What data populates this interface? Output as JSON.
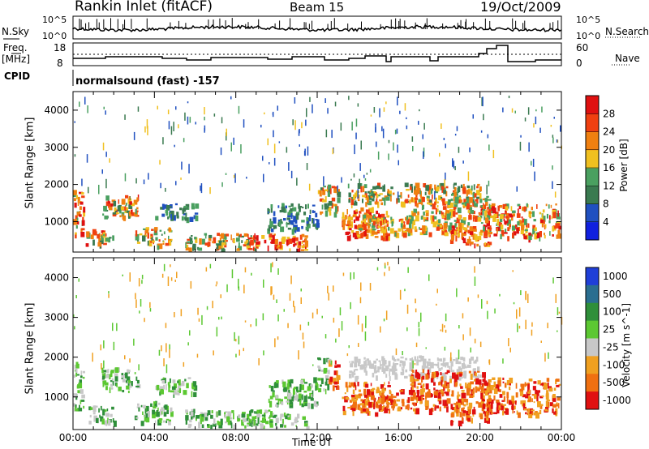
{
  "header": {
    "station": "Rankin Inlet (fitACF)",
    "beam": "Beam 15",
    "date": "19/Oct/2009"
  },
  "panels": {
    "nsky_label": "N.Sky",
    "nsky_ticks": [
      "10^5",
      "10^0"
    ],
    "nsearch_label": "N.Search",
    "nsearch_ticks": [
      "10^5",
      "10^0"
    ],
    "freq_label": "Freq.",
    "freq_unit": "[MHz]",
    "freq_ticks": [
      "18",
      "8"
    ],
    "nave_label": "Nave",
    "nave_ticks": [
      "60",
      "0"
    ],
    "cpid_label": "CPID",
    "cpid_text": "normalsound (fast) -157"
  },
  "colors": {
    "power_scale": [
      "#1020e0",
      "#2050c0",
      "#3a7a50",
      "#4aa060",
      "#f0c020",
      "#f08010",
      "#f04010",
      "#e01010"
    ],
    "velocity_scale": [
      "#1f3fd8",
      "#2a6e90",
      "#2f8f3a",
      "#5cc832",
      "#c8c8c8",
      "#f0a020",
      "#f07010",
      "#e01010"
    ]
  },
  "chart_data": [
    {
      "type": "heatmap",
      "title": "Power",
      "ylabel": "Slant Range [km]",
      "xlabel": "Time UT",
      "ylim": [
        180,
        4500
      ],
      "xlim": [
        0,
        24
      ],
      "x_ticks": [
        "00:00",
        "04:00",
        "08:00",
        "12:00",
        "16:00",
        "20:00",
        "00:00"
      ],
      "y_ticks": [
        "1000",
        "2000",
        "3000",
        "4000"
      ],
      "colorbar_label": "Power [dB]",
      "colorbar_ticks": [
        "4",
        "8",
        "12",
        "16",
        "20",
        "24",
        "28"
      ],
      "colorbar_range": [
        0,
        32
      ]
    },
    {
      "type": "heatmap",
      "title": "Velocity",
      "ylabel": "Slant Range [km]",
      "xlabel": "Time UT",
      "ylim": [
        180,
        4500
      ],
      "xlim": [
        0,
        24
      ],
      "x_ticks": [
        "00:00",
        "04:00",
        "08:00",
        "12:00",
        "16:00",
        "20:00",
        "00:00"
      ],
      "y_ticks": [
        "1000",
        "2000",
        "3000",
        "4000"
      ],
      "colorbar_label": "Velocity [m s^-1]",
      "colorbar_ticks": [
        "1000",
        "500",
        "100",
        "25",
        "-25",
        "-100",
        "-500",
        "-1000"
      ]
    }
  ]
}
